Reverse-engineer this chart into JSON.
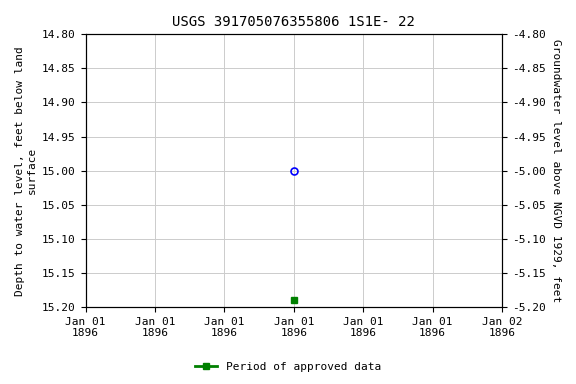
{
  "title": "USGS 391705076355806 1S1E- 22",
  "ylabel_left": "Depth to water level, feet below land\nsurface",
  "ylabel_right": "Groundwater level above NGVD 1929, feet",
  "ylim_left": [
    14.8,
    15.2
  ],
  "ylim_right": [
    -4.8,
    -5.2
  ],
  "yticks_left": [
    14.8,
    14.85,
    14.9,
    14.95,
    15.0,
    15.05,
    15.1,
    15.15,
    15.2
  ],
  "yticks_right": [
    -4.8,
    -4.85,
    -4.9,
    -4.95,
    -5.0,
    -5.05,
    -5.1,
    -5.15,
    -5.2
  ],
  "point_blue_x": 3.0,
  "point_blue_y": 15.0,
  "point_green_x": 3.0,
  "point_green_y": 15.19,
  "xlim": [
    0,
    6
  ],
  "xtick_positions": [
    0,
    1,
    2,
    3,
    4,
    5,
    6
  ],
  "xtick_labels": [
    "Jan 01\n1896",
    "Jan 01\n1896",
    "Jan 01\n1896",
    "Jan 01\n1896",
    "Jan 01\n1896",
    "Jan 01\n1896",
    "Jan 02\n1896"
  ],
  "legend_label": "Period of approved data",
  "legend_color": "#008000",
  "bg_color": "#ffffff",
  "grid_color": "#cccccc",
  "blue_marker_color": "#0000ff",
  "title_fontsize": 10,
  "axis_label_fontsize": 8,
  "tick_fontsize": 8
}
